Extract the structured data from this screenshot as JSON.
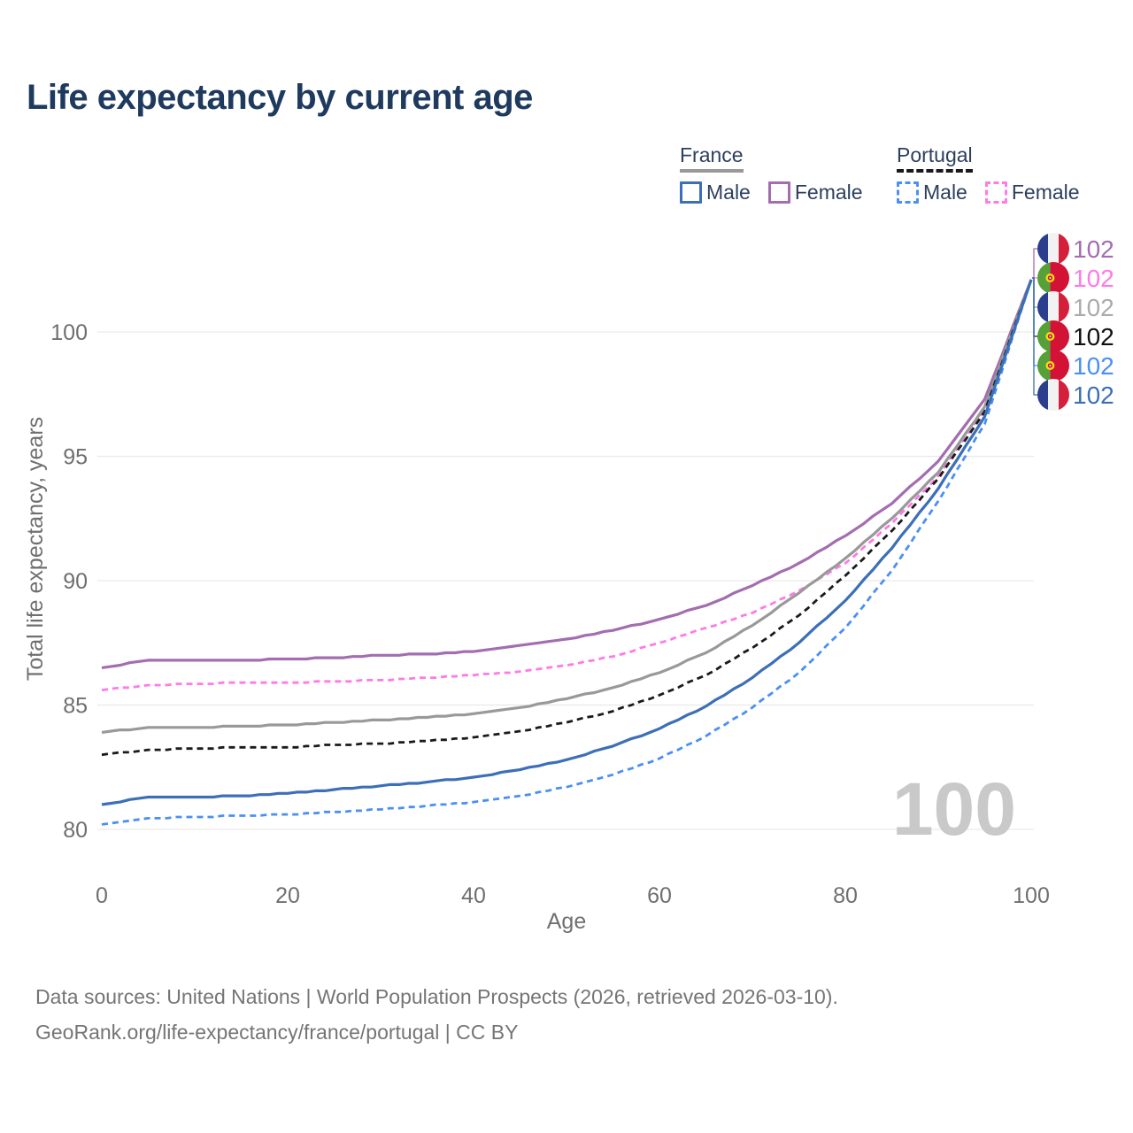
{
  "title": "Life expectancy by current age",
  "legend": {
    "groups": [
      {
        "label": "France",
        "line_style": "solid",
        "underline_color": "#999999",
        "items": [
          {
            "label": "Male",
            "color": "#3c6fb7",
            "dashed": false
          },
          {
            "label": "Female",
            "color": "#a36db0",
            "dashed": false
          }
        ]
      },
      {
        "label": "Portugal",
        "line_style": "dashed",
        "underline_color": "#1a1a1a",
        "items": [
          {
            "label": "Male",
            "color": "#4b8ff5",
            "dashed": true
          },
          {
            "label": "Female",
            "color": "#ff7ae5",
            "dashed": true
          }
        ]
      }
    ]
  },
  "chart_data": {
    "type": "line",
    "title": "Life expectancy by current age",
    "xlabel": "Age",
    "ylabel": "Total life expectancy, years",
    "xticks": [
      0,
      20,
      40,
      60,
      80,
      100
    ],
    "yticks": [
      80,
      85,
      90,
      95,
      100
    ],
    "xlim": [
      0,
      100
    ],
    "ylim": [
      79.5,
      102.5
    ],
    "grid": "horizontal",
    "legend_position": "top-right",
    "x": [
      0,
      5,
      10,
      15,
      20,
      25,
      30,
      35,
      40,
      45,
      50,
      55,
      60,
      65,
      70,
      75,
      80,
      85,
      90,
      95,
      100
    ],
    "series": [
      {
        "name": "France Female",
        "country": "fr",
        "sex": "female",
        "color": "#a36db0",
        "dash": "solid",
        "end_label": "102",
        "label_row": 0,
        "values": [
          86.5,
          86.8,
          86.8,
          86.8,
          86.85,
          86.9,
          87.0,
          87.05,
          87.15,
          87.4,
          87.65,
          88.0,
          88.45,
          89.0,
          89.8,
          90.7,
          91.8,
          93.1,
          94.8,
          97.3,
          102.1
        ]
      },
      {
        "name": "Portugal Female",
        "country": "pt",
        "sex": "female",
        "color": "#ff7ae5",
        "dash": "dashed",
        "end_label": "102",
        "label_row": 1,
        "values": [
          85.6,
          85.8,
          85.85,
          85.9,
          85.9,
          85.95,
          86.0,
          86.1,
          86.2,
          86.35,
          86.6,
          86.95,
          87.5,
          88.1,
          88.7,
          89.6,
          90.7,
          92.3,
          94.2,
          96.9,
          102.1
        ]
      },
      {
        "name": "France Total",
        "country": "fr",
        "sex": "total",
        "color": "#999999",
        "dash": "solid",
        "end_label": "102",
        "label_color": "#ababab",
        "label_row": 2,
        "values": [
          83.9,
          84.1,
          84.1,
          84.15,
          84.2,
          84.3,
          84.4,
          84.5,
          84.65,
          84.9,
          85.25,
          85.7,
          86.3,
          87.1,
          88.2,
          89.5,
          90.9,
          92.5,
          94.35,
          97.0,
          102.1
        ]
      },
      {
        "name": "Portugal Total",
        "country": "pt",
        "sex": "total",
        "color": "#1a1a1a",
        "dash": "dashed",
        "end_label": "102",
        "label_color": "#111111",
        "label_row": 3,
        "values": [
          83.0,
          83.2,
          83.25,
          83.3,
          83.3,
          83.4,
          83.45,
          83.55,
          83.7,
          83.95,
          84.3,
          84.75,
          85.4,
          86.2,
          87.3,
          88.6,
          90.2,
          92.0,
          94.1,
          96.8,
          102.1
        ]
      },
      {
        "name": "Portugal Male",
        "country": "pt",
        "sex": "male",
        "color": "#4b8ff5",
        "dash": "dashed",
        "end_label": "102",
        "label_row": 4,
        "values": [
          80.2,
          80.45,
          80.5,
          80.55,
          80.6,
          80.7,
          80.8,
          80.95,
          81.1,
          81.35,
          81.7,
          82.2,
          82.85,
          83.75,
          84.9,
          86.3,
          88.1,
          90.4,
          93.2,
          96.3,
          102.1
        ]
      },
      {
        "name": "France Male",
        "country": "fr",
        "sex": "male",
        "color": "#3c6fb7",
        "dash": "solid",
        "end_label": "102",
        "label_row": 5,
        "values": [
          81.0,
          81.3,
          81.3,
          81.35,
          81.45,
          81.6,
          81.75,
          81.9,
          82.1,
          82.4,
          82.8,
          83.35,
          84.05,
          84.95,
          86.1,
          87.5,
          89.2,
          91.3,
          93.7,
          96.6,
          102.1
        ]
      }
    ]
  },
  "watermark": {
    "text": "100",
    "color": "#c9c9c9"
  },
  "colors": {
    "grid": "#e9e9e9",
    "axis_text": "#6f6f6f",
    "flag_france": {
      "blue": "#2b3e8e",
      "white": "#f2f2f2",
      "red": "#d5203b"
    },
    "flag_portugal": {
      "green": "#55a038",
      "red": "#d31335",
      "emblem_yellow": "#f7d917",
      "emblem_red": "#c8102e"
    }
  },
  "footer": {
    "line1": "Data sources: United Nations | World Population Prospects (2026, retrieved 2026-03-10).",
    "line2": "GeoRank.org/life-expectancy/france/portugal | CC BY"
  }
}
